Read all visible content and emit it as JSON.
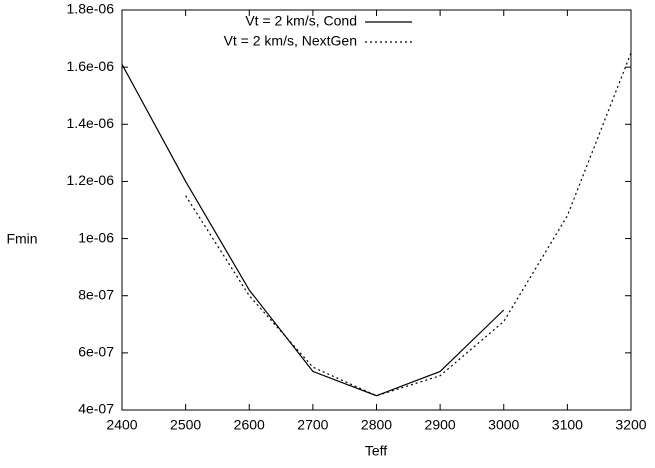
{
  "chart_data": {
    "type": "line",
    "x_label": "Teff",
    "y_label": "Fmin",
    "x": [
      2400,
      2500,
      2600,
      2700,
      2800,
      2900,
      3000,
      3100,
      3200
    ],
    "series": [
      {
        "name": "Vt = 2 km/s, Cond",
        "color": "#000000",
        "style": "solid",
        "values": [
          1.61e-06,
          1.2e-06,
          8.2e-07,
          5.35e-07,
          4.5e-07,
          5.35e-07,
          7.5e-07,
          null,
          null
        ]
      },
      {
        "name": "Vt = 2 km/s, NextGen",
        "color": "#000000",
        "style": "dotted",
        "values": [
          null,
          1.15e-06,
          8e-07,
          5.5e-07,
          4.5e-07,
          5.2e-07,
          7.1e-07,
          1.08e-06,
          1.65e-06
        ]
      }
    ],
    "xlim": [
      2400,
      3200
    ],
    "xticks": [
      2400,
      2500,
      2600,
      2700,
      2800,
      2900,
      3000,
      3100,
      3200
    ],
    "ylim": [
      4e-07,
      1.8e-06
    ],
    "yticks": [
      {
        "value": 4e-07,
        "label": "4e-07"
      },
      {
        "value": 6e-07,
        "label": "6e-07"
      },
      {
        "value": 8e-07,
        "label": "8e-07"
      },
      {
        "value": 1e-06,
        "label": "1e-06"
      },
      {
        "value": 1.2e-06,
        "label": "1.2e-06"
      },
      {
        "value": 1.4e-06,
        "label": "1.4e-06"
      },
      {
        "value": 1.6e-06,
        "label": "1.6e-06"
      },
      {
        "value": 1.8e-06,
        "label": "1.8e-06"
      }
    ],
    "legend": "top-right",
    "grid": false
  }
}
